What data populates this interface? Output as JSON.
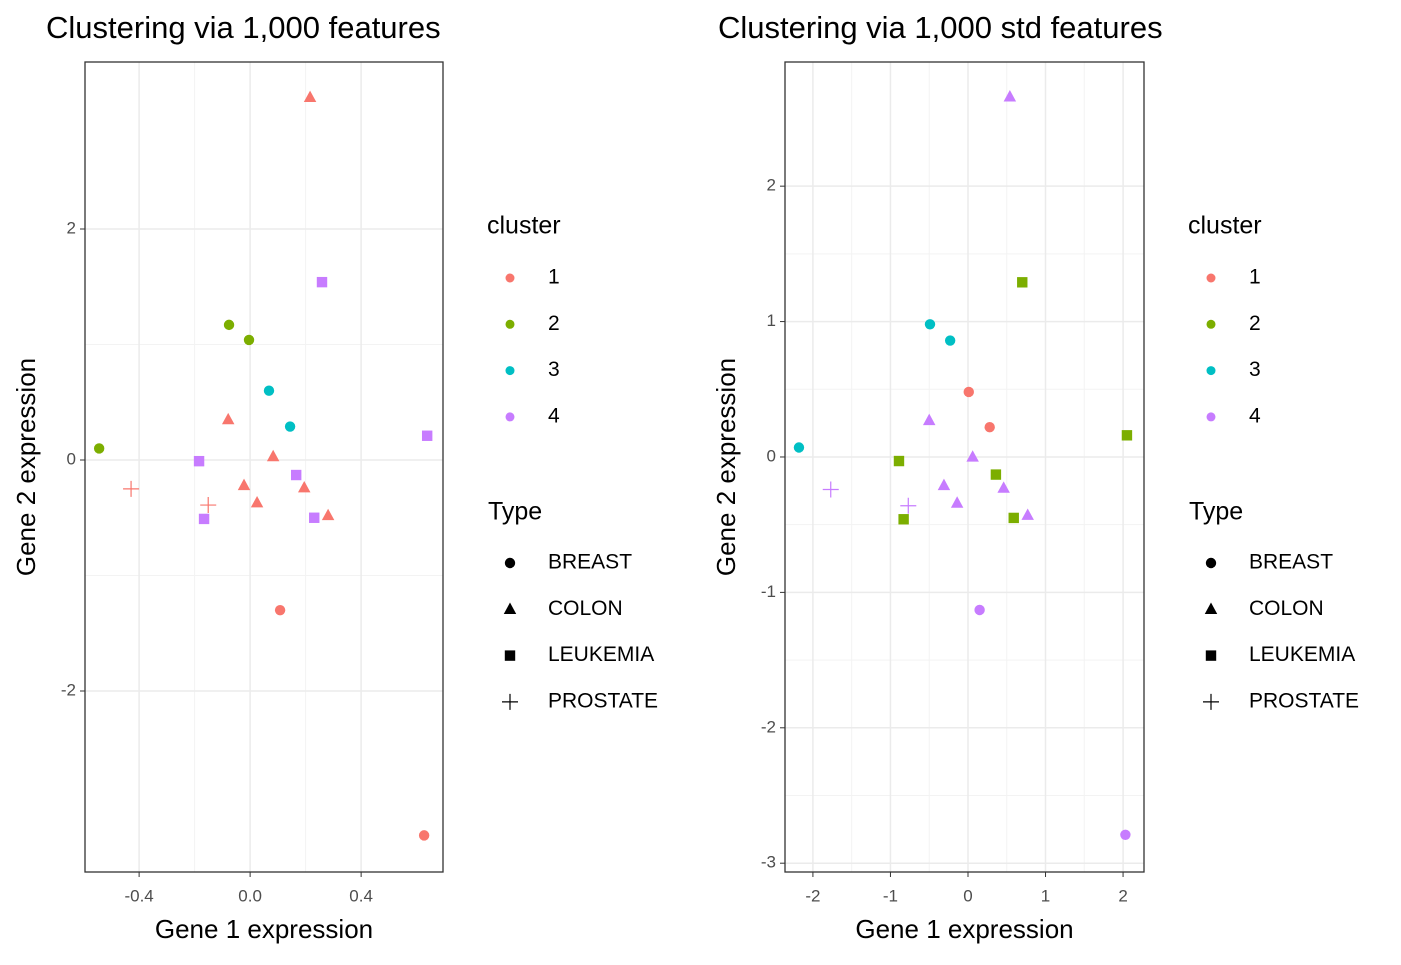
{
  "chart_data": [
    {
      "type": "scatter",
      "title": "Clustering via 1,000 features",
      "x_label": "Gene 1 expression",
      "y_label": "Gene 2 expression",
      "xlim": [
        -0.595,
        0.695
      ],
      "ylim": [
        -3.567,
        3.446
      ],
      "xticks": [
        -0.4,
        {
          "value": 0,
          "label": "0.0"
        },
        0.4
      ],
      "yticks": [
        -2,
        0,
        2
      ],
      "grid": true,
      "legend_title": "cluster",
      "shape_legend_title": "Type",
      "shape_types": [
        "BREAST",
        "COLON",
        "LEUKEMIA",
        "PROSTATE"
      ],
      "series": [
        {
          "name": "1",
          "color": "#F8766D",
          "x": [
            0.216,
            -0.079,
            0.083,
            -0.022,
            0.195,
            0.025,
            0.281,
            -0.429,
            -0.151,
            0.108,
            0.627
          ],
          "y": [
            3.14,
            0.35,
            0.03,
            -0.22,
            -0.24,
            -0.37,
            -0.48,
            -0.25,
            -0.39,
            -1.3,
            -3.25
          ],
          "type": [
            "COLON",
            "COLON",
            "COLON",
            "COLON",
            "COLON",
            "COLON",
            "COLON",
            "PROSTATE",
            "PROSTATE",
            "BREAST",
            "BREAST"
          ]
        },
        {
          "name": "2",
          "color": "#7CAE00",
          "x": [
            -0.076,
            -0.004,
            -0.544
          ],
          "y": [
            1.17,
            1.04,
            0.1
          ],
          "type": [
            "BREAST",
            "BREAST",
            "BREAST"
          ]
        },
        {
          "name": "3",
          "color": "#00BFC4",
          "x": [
            0.068,
            0.144
          ],
          "y": [
            0.6,
            0.29
          ],
          "type": [
            "BREAST",
            "BREAST"
          ]
        },
        {
          "name": "4",
          "color": "#C77CFF",
          "x": [
            0.259,
            0.638,
            -0.184,
            0.166,
            -0.166,
            0.231
          ],
          "y": [
            1.54,
            0.21,
            -0.01,
            -0.13,
            -0.51,
            -0.5
          ],
          "type": [
            "LEUKEMIA",
            "LEUKEMIA",
            "LEUKEMIA",
            "LEUKEMIA",
            "LEUKEMIA",
            "LEUKEMIA"
          ]
        }
      ]
    },
    {
      "type": "scatter",
      "title": "Clustering via 1,000 std features",
      "x_label": "Gene 1 expression",
      "y_label": "Gene 2 expression",
      "xlim": [
        -2.36,
        2.27
      ],
      "ylim": [
        -3.065,
        2.917
      ],
      "xticks": [
        -2,
        -1,
        0,
        1,
        2
      ],
      "yticks": [
        -3,
        -2,
        -1,
        0,
        1,
        2
      ],
      "grid": true,
      "legend_title": "cluster",
      "shape_legend_title": "Type",
      "shape_types": [
        "BREAST",
        "COLON",
        "LEUKEMIA",
        "PROSTATE"
      ],
      "series": [
        {
          "name": "1",
          "color": "#F8766D",
          "x": [
            0.01,
            0.28
          ],
          "y": [
            0.48,
            0.22
          ],
          "type": [
            "BREAST",
            "BREAST"
          ]
        },
        {
          "name": "2",
          "color": "#7CAE00",
          "x": [
            0.7,
            2.05,
            -0.89,
            0.36,
            -0.83,
            0.59
          ],
          "y": [
            1.29,
            0.16,
            -0.03,
            -0.13,
            -0.46,
            -0.45
          ],
          "type": [
            "LEUKEMIA",
            "LEUKEMIA",
            "LEUKEMIA",
            "LEUKEMIA",
            "LEUKEMIA",
            "LEUKEMIA"
          ]
        },
        {
          "name": "3",
          "color": "#00BFC4",
          "x": [
            -0.49,
            -0.23,
            -2.18
          ],
          "y": [
            0.98,
            0.86,
            0.07
          ],
          "type": [
            "BREAST",
            "BREAST",
            "BREAST"
          ]
        },
        {
          "name": "4",
          "color": "#C77CFF",
          "x": [
            0.54,
            -0.5,
            0.06,
            -0.31,
            0.46,
            -0.14,
            0.77,
            -1.77,
            -0.77,
            0.15,
            2.03
          ],
          "y": [
            2.66,
            0.27,
            0.0,
            -0.21,
            -0.23,
            -0.34,
            -0.43,
            -0.24,
            -0.36,
            -1.13,
            -2.79
          ],
          "type": [
            "COLON",
            "COLON",
            "COLON",
            "COLON",
            "COLON",
            "COLON",
            "COLON",
            "PROSTATE",
            "PROSTATE",
            "BREAST",
            "BREAST"
          ]
        }
      ]
    }
  ]
}
